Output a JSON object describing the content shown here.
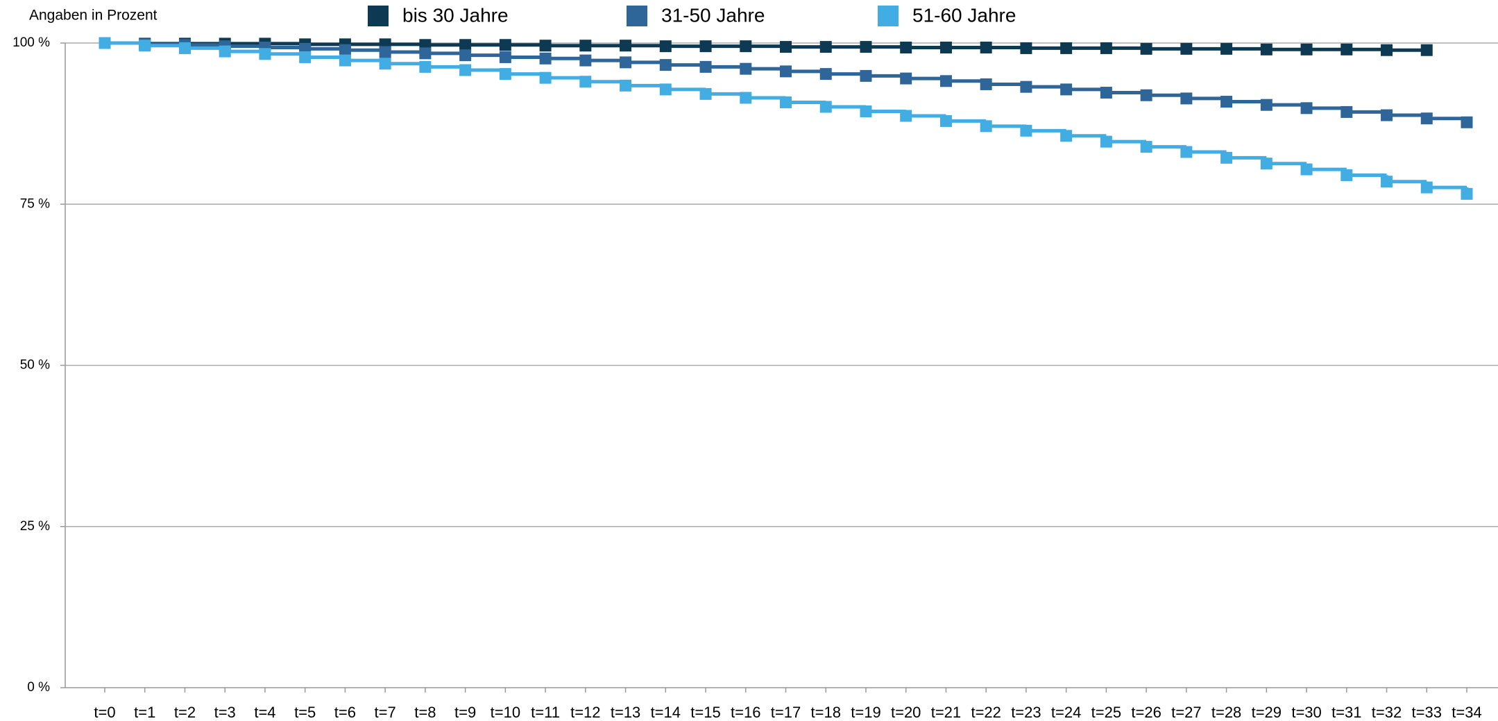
{
  "chart_data": {
    "type": "step-line",
    "ylabel": "Angaben in Prozent",
    "categories": [
      "t=0",
      "t=1",
      "t=2",
      "t=3",
      "t=4",
      "t=5",
      "t=6",
      "t=7",
      "t=8",
      "t=9",
      "t=10",
      "t=11",
      "t=12",
      "t=13",
      "t=14",
      "t=15",
      "t=16",
      "t=17",
      "t=18",
      "t=19",
      "t=20",
      "t=21",
      "t=22",
      "t=23",
      "t=24",
      "t=25",
      "t=26",
      "t=27",
      "t=28",
      "t=29",
      "t=30",
      "t=31",
      "t=32",
      "t=33",
      "t=34"
    ],
    "series": [
      {
        "name": "bis 30 Jahre",
        "color": "#0d3a52",
        "values": [
          100,
          99.9,
          99.9,
          99.9,
          99.9,
          99.8,
          99.8,
          99.8,
          99.7,
          99.7,
          99.7,
          99.6,
          99.6,
          99.6,
          99.5,
          99.5,
          99.5,
          99.4,
          99.4,
          99.4,
          99.3,
          99.3,
          99.3,
          99.2,
          99.2,
          99.2,
          99.1,
          99.1,
          99.1,
          99.0,
          99.0,
          99.0,
          98.9,
          98.9,
          null
        ]
      },
      {
        "name": "31-50 Jahre",
        "color": "#2e6699",
        "values": [
          100,
          99.8,
          99.7,
          99.5,
          99.3,
          99.1,
          98.9,
          98.6,
          98.4,
          98.1,
          97.8,
          97.6,
          97.3,
          97.0,
          96.6,
          96.3,
          96.0,
          95.6,
          95.2,
          94.9,
          94.5,
          94.1,
          93.6,
          93.2,
          92.8,
          92.3,
          91.9,
          91.4,
          90.9,
          90.4,
          89.9,
          89.3,
          88.8,
          88.3,
          87.7
        ]
      },
      {
        "name": "51-60 Jahre",
        "color": "#41ade3",
        "values": [
          100,
          99.6,
          99.2,
          98.7,
          98.3,
          97.8,
          97.3,
          96.8,
          96.3,
          95.8,
          95.2,
          94.6,
          94.0,
          93.4,
          92.8,
          92.1,
          91.5,
          90.8,
          90.1,
          89.4,
          88.7,
          87.9,
          87.1,
          86.4,
          85.6,
          84.7,
          83.9,
          83.1,
          82.2,
          81.3,
          80.4,
          79.5,
          78.5,
          77.6,
          76.6
        ]
      }
    ],
    "ylim": [
      0,
      100
    ],
    "yticks": [
      {
        "value": 0,
        "label": "0 %"
      },
      {
        "value": 25,
        "label": "25 %"
      },
      {
        "value": 50,
        "label": "50 %"
      },
      {
        "value": 75,
        "label": "75 %"
      },
      {
        "value": 100,
        "label": "100 %"
      }
    ],
    "grid": true,
    "legend": "top"
  }
}
